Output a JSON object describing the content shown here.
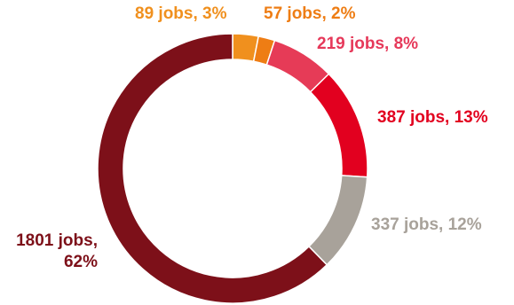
{
  "chart_data": {
    "type": "pie",
    "donut": true,
    "title": "",
    "slices": [
      {
        "value": 89,
        "percent": 3,
        "label": "89 jobs, 3%",
        "color": "#f0901e"
      },
      {
        "value": 57,
        "percent": 2,
        "label": "57 jobs, 2%",
        "color": "#ee7d14"
      },
      {
        "value": 219,
        "percent": 8,
        "label": "219 jobs, 8%",
        "color": "#e63b57"
      },
      {
        "value": 387,
        "percent": 13,
        "label": "387 jobs, 13%",
        "color": "#e2001f"
      },
      {
        "value": 337,
        "percent": 12,
        "label": "337 jobs, 12%",
        "color": "#a8a29a"
      },
      {
        "value": 1801,
        "percent": 62,
        "label_lines": [
          "1801 jobs,",
          "62%"
        ],
        "color": "#7d1019"
      }
    ],
    "label_colors": [
      "#f0901e",
      "#ee7d14",
      "#e6395a",
      "#e2001f",
      "#a8a29a",
      "#7d1019"
    ],
    "legend": "none",
    "start_angle": "top, clockwise"
  }
}
